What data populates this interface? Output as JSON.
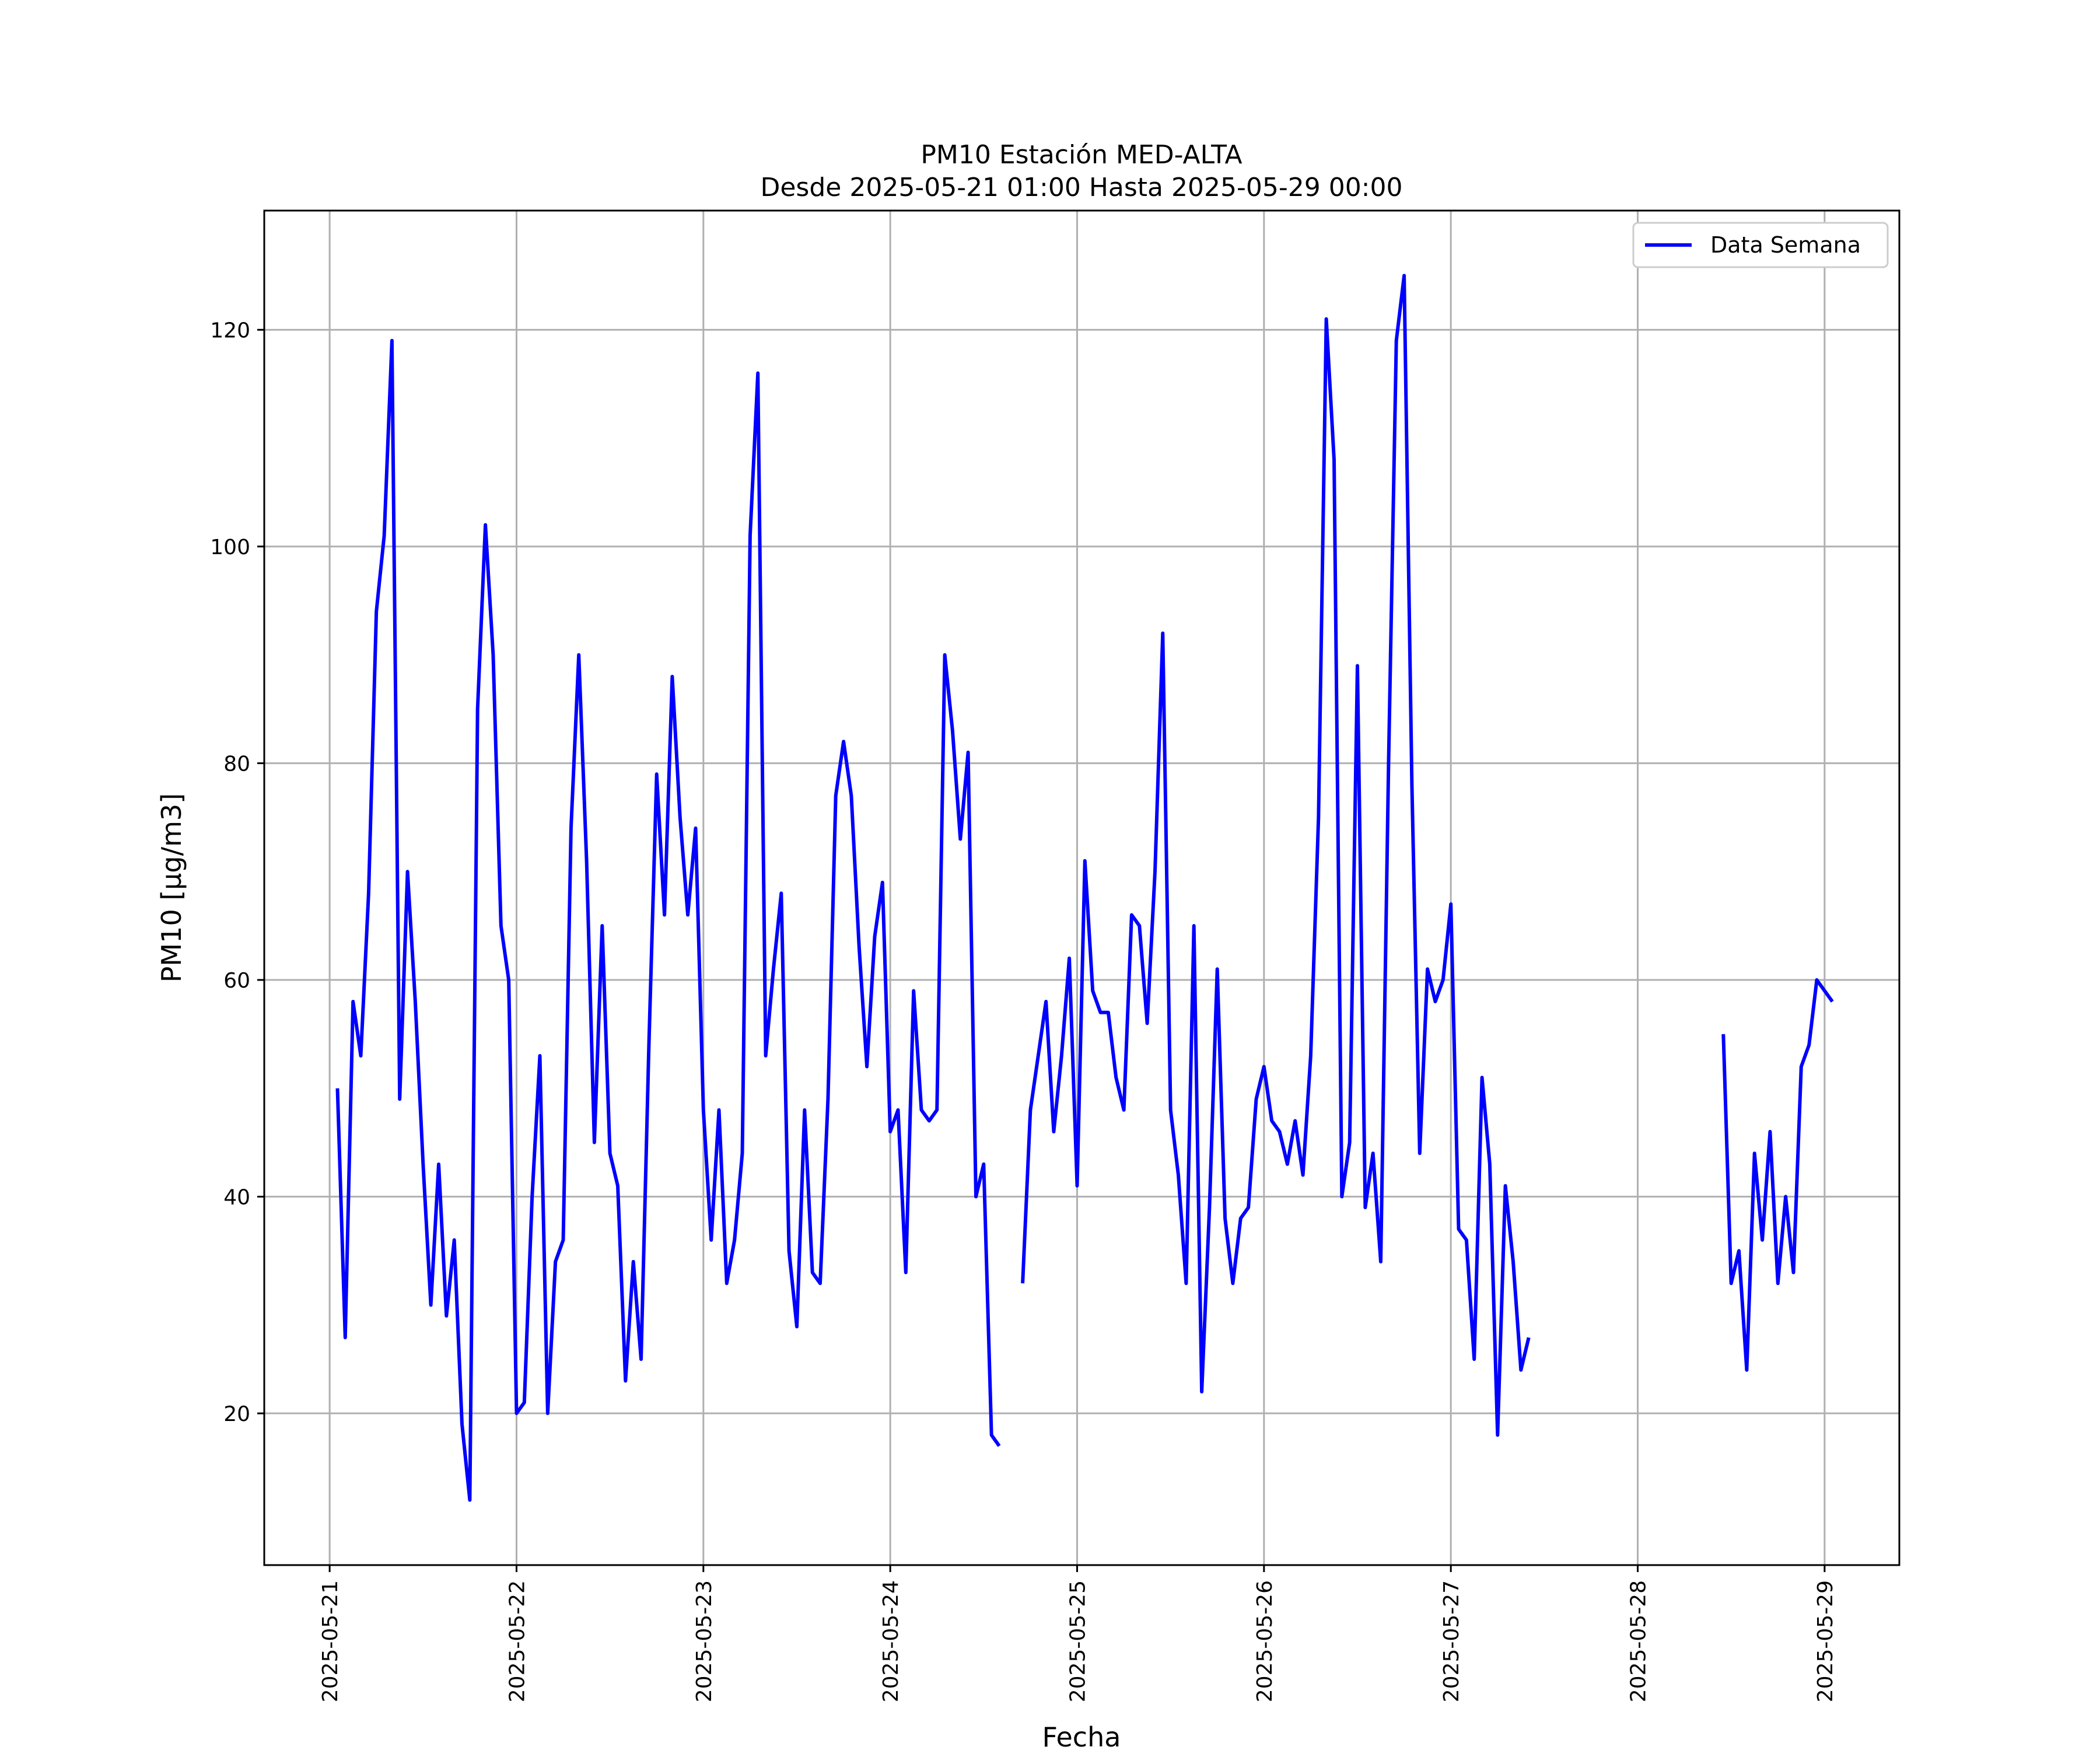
{
  "chart_data": {
    "type": "line",
    "title": "PM10 Estación MED-ALTA",
    "subtitle": "Desde 2025-05-21 01:00 Hasta 2025-05-29 00:00",
    "xlabel": "Fecha",
    "ylabel": "PM10 [μg/m3]",
    "xlim": [
      "2025-05-20 15:36",
      "2025-05-29 09:36"
    ],
    "ylim": [
      6,
      131
    ],
    "x_ticks": [
      "2025-05-21",
      "2025-05-22",
      "2025-05-23",
      "2025-05-24",
      "2025-05-25",
      "2025-05-26",
      "2025-05-27",
      "2025-05-28",
      "2025-05-29"
    ],
    "y_ticks": [
      20,
      40,
      60,
      80,
      100,
      120
    ],
    "grid": true,
    "legend": {
      "position": "top-right",
      "entries": [
        "Data Semana"
      ]
    },
    "colors": {
      "series": "#0000ff",
      "grid": "#b0b0b0"
    },
    "series": [
      {
        "name": "Data Semana",
        "color": "#0000ff",
        "start": "2025-05-21 01:00",
        "interval_hours": 1,
        "values": [
          50,
          27,
          58,
          53,
          68,
          94,
          101,
          119,
          49,
          70,
          58,
          43,
          30,
          43,
          29,
          36,
          19,
          12,
          85,
          102,
          90,
          65,
          60,
          20,
          21,
          40,
          53,
          20,
          34,
          36,
          74,
          90,
          71,
          45,
          65,
          44,
          41,
          23,
          34,
          25,
          54,
          79,
          66,
          88,
          75,
          66,
          74,
          48,
          36,
          48,
          32,
          36,
          44,
          101,
          116,
          53,
          61,
          68,
          35,
          28,
          48,
          33,
          32,
          49,
          77,
          82,
          77,
          63,
          52,
          64,
          69,
          46,
          48,
          33,
          59,
          48,
          47,
          48,
          90,
          83,
          73,
          81,
          40,
          43,
          18,
          17,
          null,
          null,
          32,
          48,
          53,
          58,
          46,
          53,
          62,
          41,
          71,
          59,
          57,
          57,
          51,
          48,
          66,
          65,
          56,
          70,
          92,
          48,
          42,
          32,
          65,
          22,
          39,
          61,
          38,
          32,
          38,
          39,
          49,
          52,
          47,
          46,
          43,
          47,
          42,
          53,
          75,
          121,
          108,
          40,
          45,
          89,
          39,
          44,
          34,
          80,
          119,
          125,
          78,
          44,
          61,
          58,
          60,
          67,
          37,
          36,
          25,
          51,
          43,
          18,
          41,
          34,
          24,
          27,
          null,
          null,
          null,
          null,
          null,
          null,
          null,
          null,
          null,
          null,
          null,
          null,
          null,
          null,
          null,
          null,
          null,
          null,
          null,
          null,
          null,
          null,
          null,
          null,
          55,
          32,
          35,
          24,
          44,
          36,
          46,
          32,
          40,
          33,
          52,
          54,
          60,
          59,
          58
        ]
      }
    ]
  }
}
